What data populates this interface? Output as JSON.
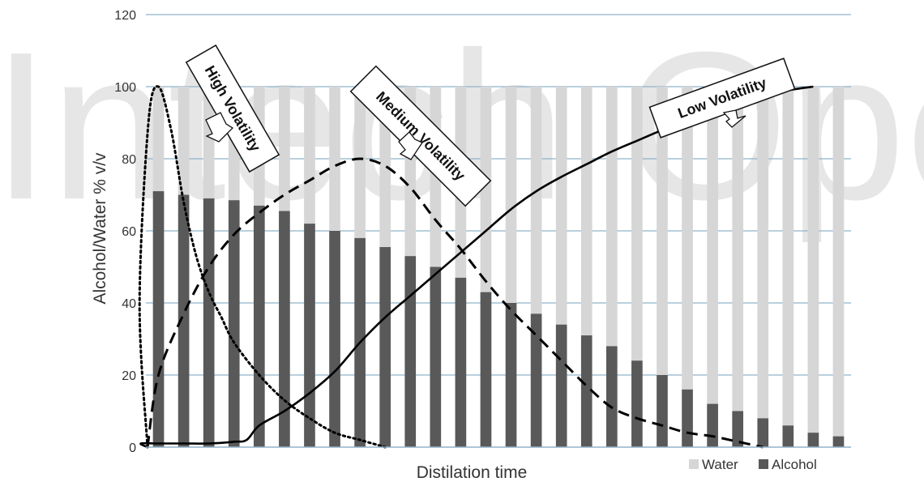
{
  "watermark": "Intech Open",
  "chart_data": {
    "type": "bar",
    "title": "",
    "xlabel": "Distilation time",
    "ylabel": "Alcohol/Water % v/v",
    "ylim": [
      0,
      120
    ],
    "y_ticks": [
      0,
      20,
      40,
      60,
      80,
      100,
      120
    ],
    "grid": true,
    "legend_position": "bottom-right",
    "bar_total": 100,
    "series": [
      {
        "name": "Water",
        "color": "#d6d6d6",
        "values": [
          29,
          30,
          31,
          31.5,
          33,
          34.5,
          38,
          40,
          42,
          44.5,
          47,
          50,
          53,
          57,
          60,
          63,
          66,
          69,
          72,
          76,
          80,
          84,
          88,
          90,
          92,
          94,
          96,
          97
        ]
      },
      {
        "name": "Alcohol",
        "color": "#595959",
        "values": [
          71,
          70,
          69,
          68.5,
          67,
          65.5,
          62,
          60,
          58,
          55.5,
          53,
          50,
          47,
          43,
          40,
          37,
          34,
          31,
          28,
          24,
          20,
          16,
          12,
          10,
          8,
          6,
          4,
          3
        ]
      }
    ],
    "curves": [
      {
        "label": "High Volatility",
        "style": "dotted",
        "x": [
          0,
          0.25,
          0.6,
          1,
          1.5,
          2,
          2.5,
          3,
          3.5,
          4,
          5,
          6,
          7,
          8,
          9,
          10
        ],
        "y": [
          0,
          40,
          90,
          100,
          88,
          68,
          53,
          43,
          36,
          29,
          20,
          13,
          8,
          4,
          2,
          0
        ]
      },
      {
        "label": "Medium Volatility",
        "style": "dashed",
        "x": [
          0,
          1,
          2,
          3,
          4,
          5,
          6,
          7,
          8,
          9,
          10,
          11,
          12,
          13,
          14,
          15,
          16,
          17,
          18,
          19,
          20,
          21,
          22,
          23,
          24,
          25
        ],
        "y": [
          0,
          20,
          37,
          50,
          59,
          65,
          70,
          74,
          78,
          80,
          78,
          72,
          63,
          55,
          46,
          38,
          31,
          24,
          17,
          11,
          8,
          6,
          4,
          3,
          1.5,
          0
        ]
      },
      {
        "label": "Low Volatility",
        "style": "solid",
        "x": [
          0,
          0.3,
          1,
          2,
          3,
          4,
          4.5,
          5,
          6,
          7,
          8,
          9,
          10,
          11,
          12,
          13,
          14,
          15,
          16,
          17,
          18,
          19,
          20,
          21,
          22,
          23,
          24,
          25,
          26,
          27
        ],
        "y": [
          0,
          1,
          1,
          1,
          1,
          1.5,
          2,
          6,
          10,
          15,
          21,
          29,
          36,
          42,
          48,
          54,
          60,
          66,
          71,
          75,
          78.5,
          82,
          85,
          88,
          91,
          94,
          96,
          97.5,
          99,
          100
        ]
      }
    ]
  }
}
